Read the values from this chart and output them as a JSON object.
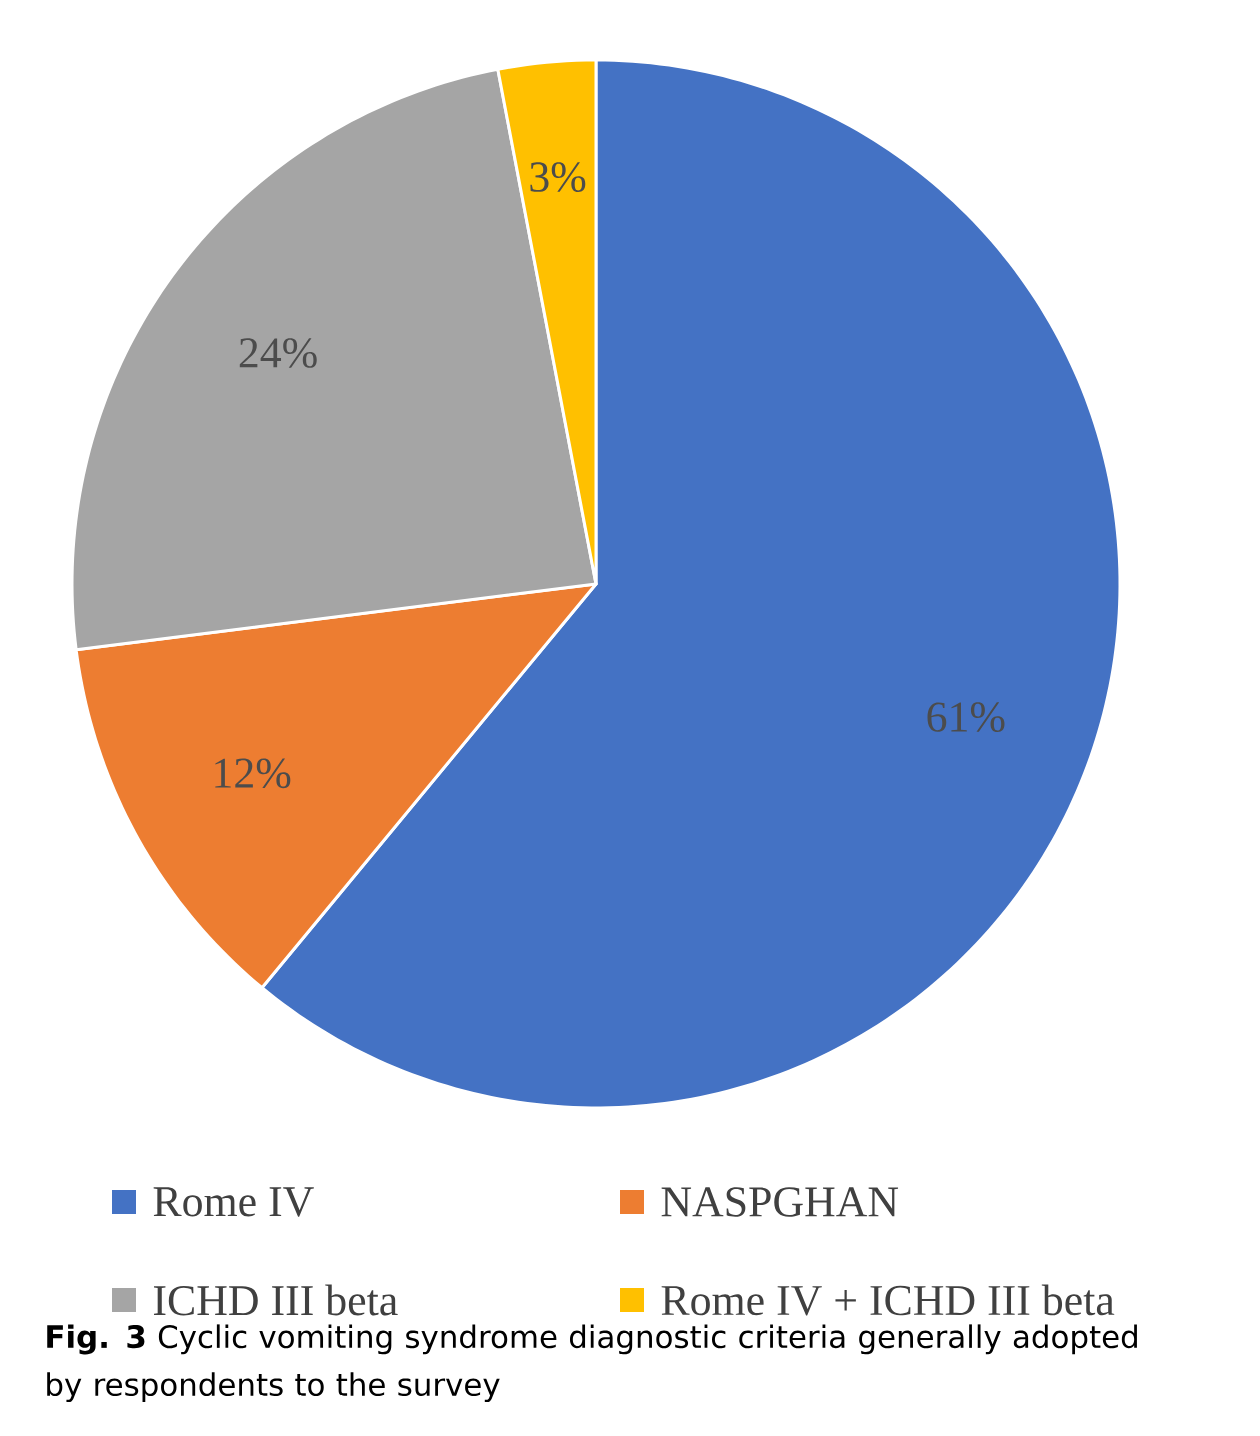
{
  "chart_data": {
    "type": "pie",
    "categories": [
      "Rome IV",
      "NASPGHAN",
      "ICHD III beta",
      "Rome IV + ICHD III beta"
    ],
    "values": [
      61,
      12,
      24,
      3
    ],
    "colors": [
      "#4472c4",
      "#ed7d31",
      "#a5a5a5",
      "#ffc000"
    ],
    "value_labels": [
      "61%",
      "12%",
      "24%",
      "3%"
    ],
    "legend": "bottom",
    "annotations": [
      "**Fig. 3** Cyclic vomiting syndrome diagnostic criteria generally adopted by respondents to the survey"
    ]
  }
}
